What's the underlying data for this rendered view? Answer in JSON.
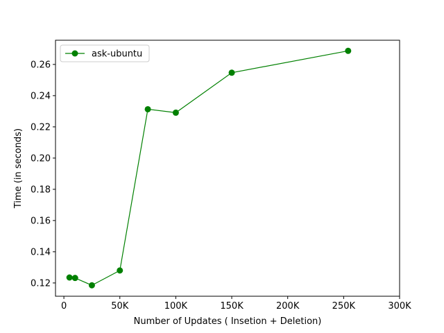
{
  "chart_data": {
    "type": "line",
    "title": "",
    "xlabel": "Number of Updates ( Insetion + Deletion)",
    "ylabel": "Time (in seconds)",
    "xlim": [
      -7500,
      300000
    ],
    "ylim": [
      0.1115,
      0.2755
    ],
    "x_ticks": [
      {
        "value": 0,
        "label": "0"
      },
      {
        "value": 50000,
        "label": "50K"
      },
      {
        "value": 100000,
        "label": "100K"
      },
      {
        "value": 150000,
        "label": "150K"
      },
      {
        "value": 200000,
        "label": "200K"
      },
      {
        "value": 250000,
        "label": "250K"
      },
      {
        "value": 300000,
        "label": "300K"
      }
    ],
    "y_ticks": [
      {
        "value": 0.12,
        "label": "0.12"
      },
      {
        "value": 0.14,
        "label": "0.14"
      },
      {
        "value": 0.16,
        "label": "0.16"
      },
      {
        "value": 0.18,
        "label": "0.18"
      },
      {
        "value": 0.2,
        "label": "0.20"
      },
      {
        "value": 0.22,
        "label": "0.22"
      },
      {
        "value": 0.24,
        "label": "0.24"
      },
      {
        "value": 0.26,
        "label": "0.26"
      }
    ],
    "grid": false,
    "legend_position": "upper-left",
    "series": [
      {
        "name": "ask-ubuntu",
        "color": "#008000",
        "marker": "circle",
        "x": [
          5000,
          10000,
          25000,
          50000,
          75000,
          100000,
          150000,
          254000
        ],
        "y": [
          0.1235,
          0.1232,
          0.1185,
          0.128,
          0.2313,
          0.2291,
          0.2547,
          0.2687
        ]
      }
    ]
  }
}
